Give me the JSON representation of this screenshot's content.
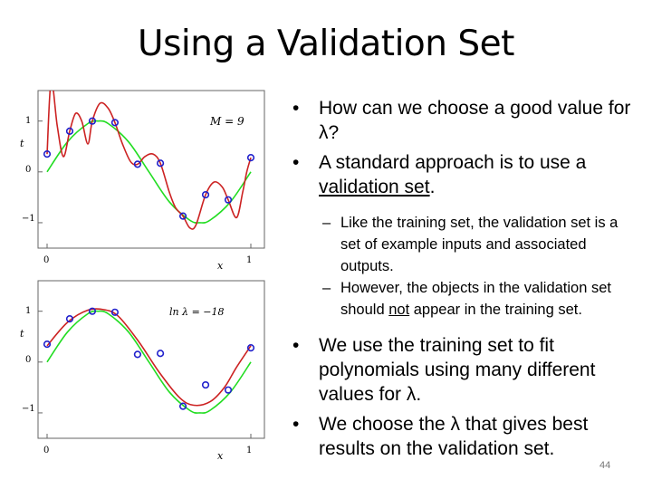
{
  "slide": {
    "title": "Using a Validation Set",
    "page_number": "44"
  },
  "bullets": {
    "b1_text": "How can we choose a good value for λ?",
    "b2_before": "A standard approach is to use a ",
    "b2_emph": "validation set",
    "b2_after": ".",
    "sub1": "Like the training set, the validation set is a set of example inputs and associated outputs.",
    "sub2_before": "However, the objects in the validation set should ",
    "sub2_emph": "not",
    "sub2_after": " appear in the training set.",
    "b3_text": "We use the training set to fit polynomials using many different values for λ.",
    "b4_text": "We choose the λ that gives best results on the validation set."
  },
  "figures": {
    "top": {
      "label": "M = 9",
      "y_axis_label": "t",
      "x_axis_label": "x",
      "y_ticks": [
        "1",
        "0",
        "−1"
      ],
      "x_ticks": [
        "0",
        "1"
      ]
    },
    "bottom": {
      "label": "ln λ = −18",
      "y_axis_label": "t",
      "x_axis_label": "x",
      "y_ticks": [
        "1",
        "0",
        "−1"
      ],
      "x_ticks": [
        "0",
        "1"
      ]
    }
  },
  "chart_data": [
    {
      "type": "scatter",
      "title": "",
      "annotation": "M = 9",
      "xlabel": "x",
      "ylabel": "t",
      "xlim": [
        0,
        1
      ],
      "ylim": [
        -1.5,
        1.6
      ],
      "x_ticks": [
        0,
        1
      ],
      "y_ticks": [
        -1,
        0,
        1
      ],
      "series": [
        {
          "kind": "points",
          "color": "#2020cc",
          "x": [
            0.0,
            0.111,
            0.222,
            0.333,
            0.444,
            0.556,
            0.667,
            0.778,
            0.889,
            1.0
          ],
          "y": [
            0.35,
            0.8,
            1.0,
            0.97,
            0.15,
            0.17,
            -0.87,
            -0.45,
            -0.55,
            0.28
          ]
        },
        {
          "kind": "line",
          "color": "#22dd22",
          "role": "true function",
          "x": [
            0.0,
            0.1,
            0.2,
            0.25,
            0.3,
            0.4,
            0.5,
            0.6,
            0.7,
            0.75,
            0.8,
            0.9,
            1.0
          ],
          "y": [
            0.0,
            0.59,
            0.95,
            1.0,
            0.95,
            0.59,
            0.0,
            -0.59,
            -0.95,
            -1.0,
            -0.95,
            -0.59,
            0.0
          ]
        },
        {
          "kind": "line",
          "color": "#cc2222",
          "role": "fitted polynomial",
          "x": [
            0.0,
            0.02,
            0.05,
            0.08,
            0.111,
            0.14,
            0.17,
            0.2,
            0.222,
            0.26,
            0.3,
            0.333,
            0.37,
            0.41,
            0.444,
            0.48,
            0.52,
            0.556,
            0.6,
            0.63,
            0.667,
            0.7,
            0.73,
            0.778,
            0.82,
            0.86,
            0.889,
            0.93,
            0.96,
            0.98,
            1.0
          ],
          "y": [
            0.35,
            1.8,
            0.9,
            0.3,
            0.8,
            1.15,
            1.0,
            0.55,
            1.0,
            1.35,
            1.25,
            0.97,
            0.55,
            0.2,
            0.15,
            0.3,
            0.35,
            0.17,
            -0.4,
            -0.7,
            -0.87,
            -1.1,
            -1.05,
            -0.45,
            -0.2,
            -0.3,
            -0.55,
            -0.9,
            -0.4,
            0.0,
            0.28
          ]
        }
      ]
    },
    {
      "type": "scatter",
      "title": "",
      "annotation": "ln λ = −18",
      "xlabel": "x",
      "ylabel": "t",
      "xlim": [
        0,
        1
      ],
      "ylim": [
        -1.5,
        1.6
      ],
      "x_ticks": [
        0,
        1
      ],
      "y_ticks": [
        -1,
        0,
        1
      ],
      "series": [
        {
          "kind": "points",
          "color": "#2020cc",
          "x": [
            0.0,
            0.111,
            0.222,
            0.333,
            0.444,
            0.556,
            0.667,
            0.778,
            0.889,
            1.0
          ],
          "y": [
            0.35,
            0.85,
            1.0,
            0.98,
            0.15,
            0.17,
            -0.87,
            -0.45,
            -0.55,
            0.28
          ]
        },
        {
          "kind": "line",
          "color": "#22dd22",
          "role": "true function",
          "x": [
            0.0,
            0.1,
            0.2,
            0.25,
            0.3,
            0.4,
            0.5,
            0.6,
            0.7,
            0.75,
            0.8,
            0.9,
            1.0
          ],
          "y": [
            0.0,
            0.59,
            0.95,
            1.0,
            0.95,
            0.59,
            0.0,
            -0.59,
            -0.95,
            -1.0,
            -0.95,
            -0.59,
            0.0
          ]
        },
        {
          "kind": "line",
          "color": "#cc2222",
          "role": "fitted polynomial",
          "x": [
            0.0,
            0.1,
            0.2,
            0.28,
            0.35,
            0.45,
            0.55,
            0.65,
            0.72,
            0.8,
            0.87,
            0.93,
            1.0
          ],
          "y": [
            0.32,
            0.78,
            1.02,
            1.03,
            0.9,
            0.4,
            -0.2,
            -0.7,
            -0.85,
            -0.78,
            -0.5,
            -0.1,
            0.32
          ]
        }
      ]
    }
  ]
}
